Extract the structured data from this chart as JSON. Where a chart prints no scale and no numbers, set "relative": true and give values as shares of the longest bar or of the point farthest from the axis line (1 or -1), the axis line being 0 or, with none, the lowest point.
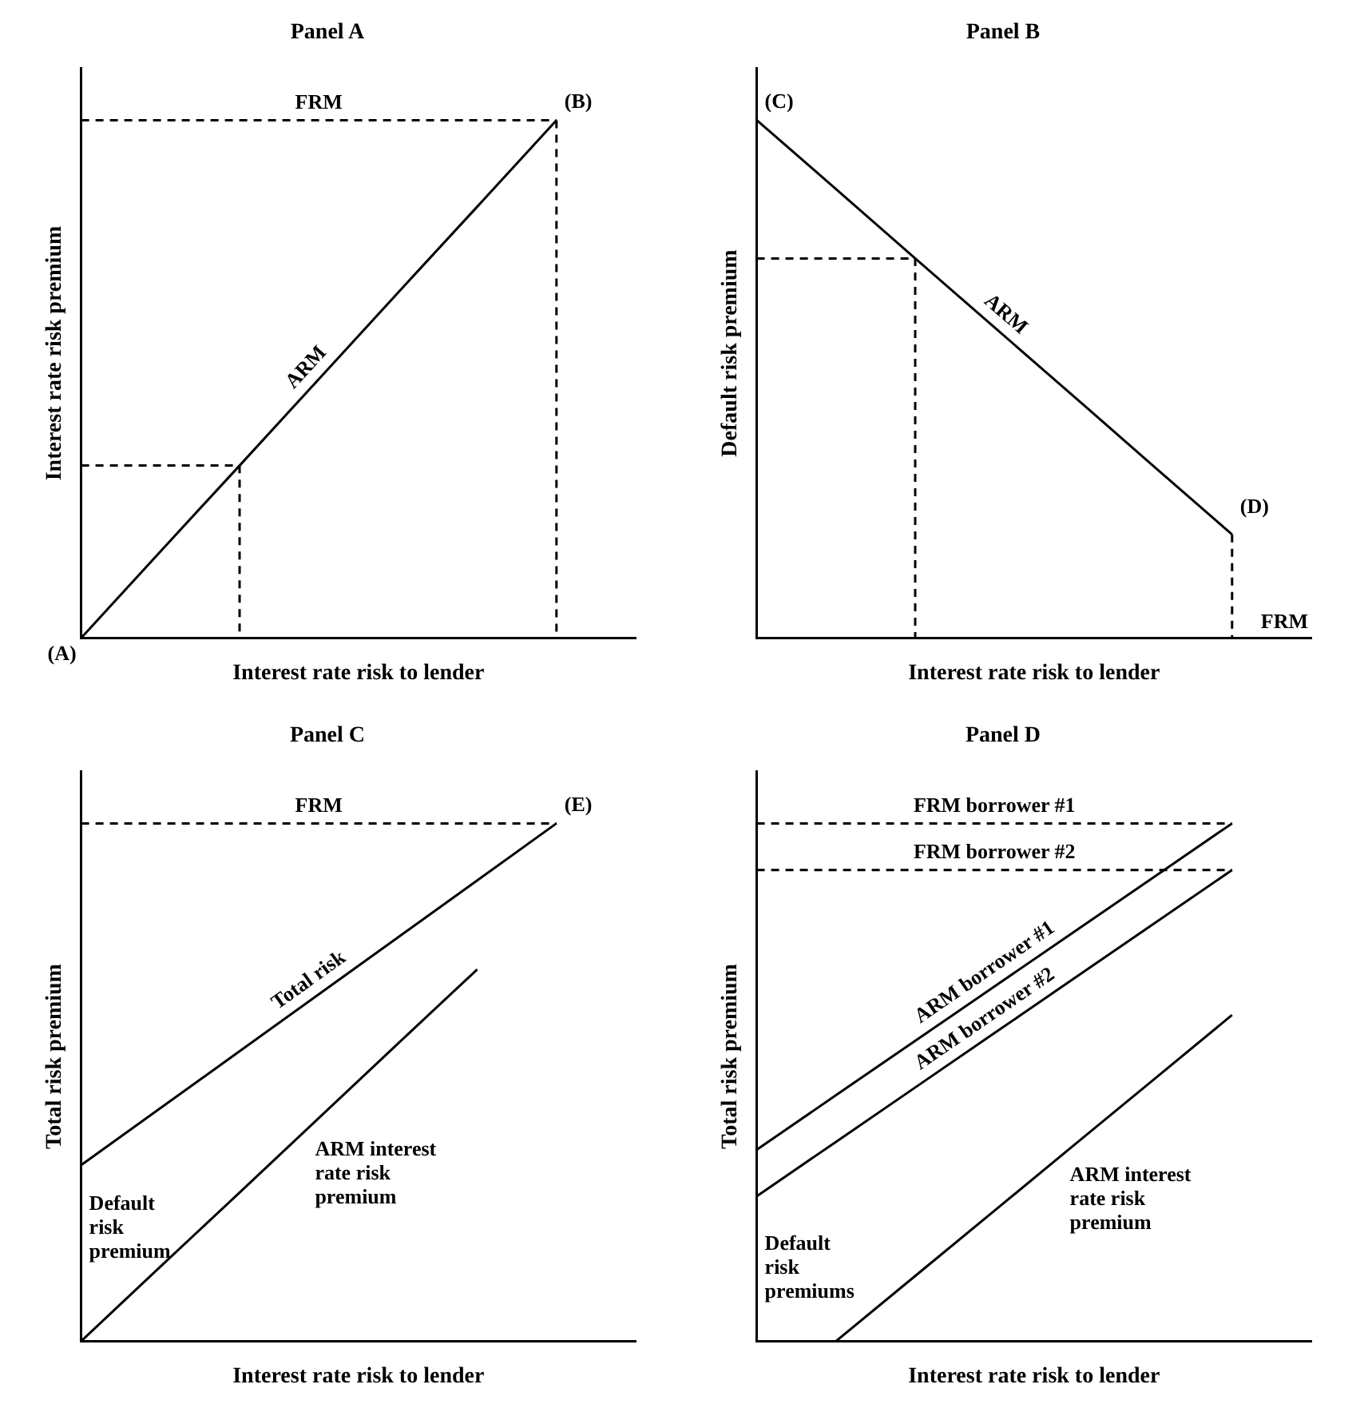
{
  "chart_data": [
    {
      "type": "line",
      "title": "Panel A",
      "xlabel": "Interest rate risk to lender",
      "ylabel": "Interest rate risk premium",
      "relative": true,
      "tick_labels": false,
      "categories": [
        null,
        null,
        null,
        null,
        null,
        null,
        null,
        null
      ],
      "series": [
        {
          "name": "ARM",
          "color": "#000000",
          "values": [
            0,
            0.167,
            0.333,
            0.5,
            0.667,
            0.833,
            1,
            null
          ]
        },
        {
          "name": "FRM",
          "color": "#000000",
          "line_style": "dashed",
          "values": [
            1,
            1,
            1,
            1,
            1,
            1,
            1,
            null
          ]
        },
        {
          "type": "step",
          "color": "#000000",
          "line_style": "dashed",
          "values": [
            null,
            null,
            null,
            null,
            null,
            null,
            1,
            0
          ]
        },
        {
          "type": "step",
          "color": "#000000",
          "line_style": "dashed",
          "values": [
            0.333,
            0.333,
            0.333,
            0,
            null,
            null,
            null,
            null
          ]
        }
      ],
      "annotations": [
        "(A)",
        "(B)"
      ]
    },
    {
      "type": "line",
      "title": "Panel B",
      "xlabel": "Interest rate risk to lender",
      "ylabel": "Default risk premium",
      "relative": true,
      "tick_labels": false,
      "categories": [
        null,
        null,
        null,
        null,
        null,
        null,
        null,
        null
      ],
      "series": [
        {
          "name": "ARM",
          "color": "#000000",
          "values": [
            1,
            0.867,
            0.733,
            0.6,
            0.467,
            0.333,
            0.2,
            null
          ]
        },
        {
          "type": "step",
          "color": "#000000",
          "line_style": "dashed",
          "values": [
            0.733,
            0.733,
            0.733,
            0,
            null,
            null,
            null,
            null
          ]
        },
        {
          "type": "step",
          "name": "FRM",
          "color": "#000000",
          "line_style": "dashed",
          "values": [
            null,
            null,
            null,
            null,
            null,
            null,
            0.2,
            0
          ]
        }
      ],
      "annotations": [
        "(C)",
        "(D)"
      ]
    },
    {
      "type": "line",
      "title": "Panel C",
      "xlabel": "Interest rate risk to lender",
      "ylabel": "Total risk premium",
      "relative": true,
      "tick_labels": false,
      "categories": [
        null,
        null,
        null,
        null,
        null,
        null,
        null,
        null
      ],
      "series": [
        {
          "name": "Total risk",
          "color": "#000000",
          "values": [
            0.34,
            0.45,
            0.56,
            0.67,
            0.78,
            0.89,
            1,
            null
          ]
        },
        {
          "name": "ARM interest rate risk premium",
          "color": "#000000",
          "values": [
            0,
            0.144,
            0.287,
            0.431,
            0.575,
            0.718,
            null,
            null
          ]
        },
        {
          "name": "FRM",
          "color": "#000000",
          "line_style": "dashed",
          "values": [
            1,
            1,
            1,
            1,
            1,
            1,
            1,
            null
          ]
        }
      ],
      "annotations": [
        "(E)",
        "Default risk premium"
      ]
    },
    {
      "type": "line",
      "title": "Panel D",
      "xlabel": "Interest rate risk to lender",
      "ylabel": "Total risk premium",
      "relative": true,
      "tick_labels": false,
      "categories": [
        null,
        null,
        null,
        null,
        null,
        null,
        null,
        null
      ],
      "series": [
        {
          "name": "ARM borrower #1",
          "color": "#000000",
          "values": [
            0.37,
            0.475,
            0.58,
            0.685,
            0.79,
            0.895,
            1,
            null
          ]
        },
        {
          "name": "ARM borrower #2",
          "color": "#000000",
          "values": [
            0.28,
            0.385,
            0.49,
            0.595,
            0.7,
            0.805,
            0.91,
            null
          ]
        },
        {
          "name": "ARM interest rate risk premium",
          "color": "#000000",
          "values": [
            null,
            0,
            0.126,
            0.252,
            0.378,
            0.504,
            0.63,
            null
          ]
        },
        {
          "name": "FRM borrower #1",
          "color": "#000000",
          "line_style": "dashed",
          "values": [
            1,
            1,
            1,
            1,
            1,
            1,
            1,
            null
          ]
        },
        {
          "name": "FRM borrower #2",
          "color": "#000000",
          "line_style": "dashed",
          "values": [
            0.91,
            0.91,
            0.91,
            0.91,
            0.91,
            0.91,
            0.91,
            null
          ]
        }
      ],
      "annotations": [
        "Default risk premiums"
      ]
    }
  ]
}
